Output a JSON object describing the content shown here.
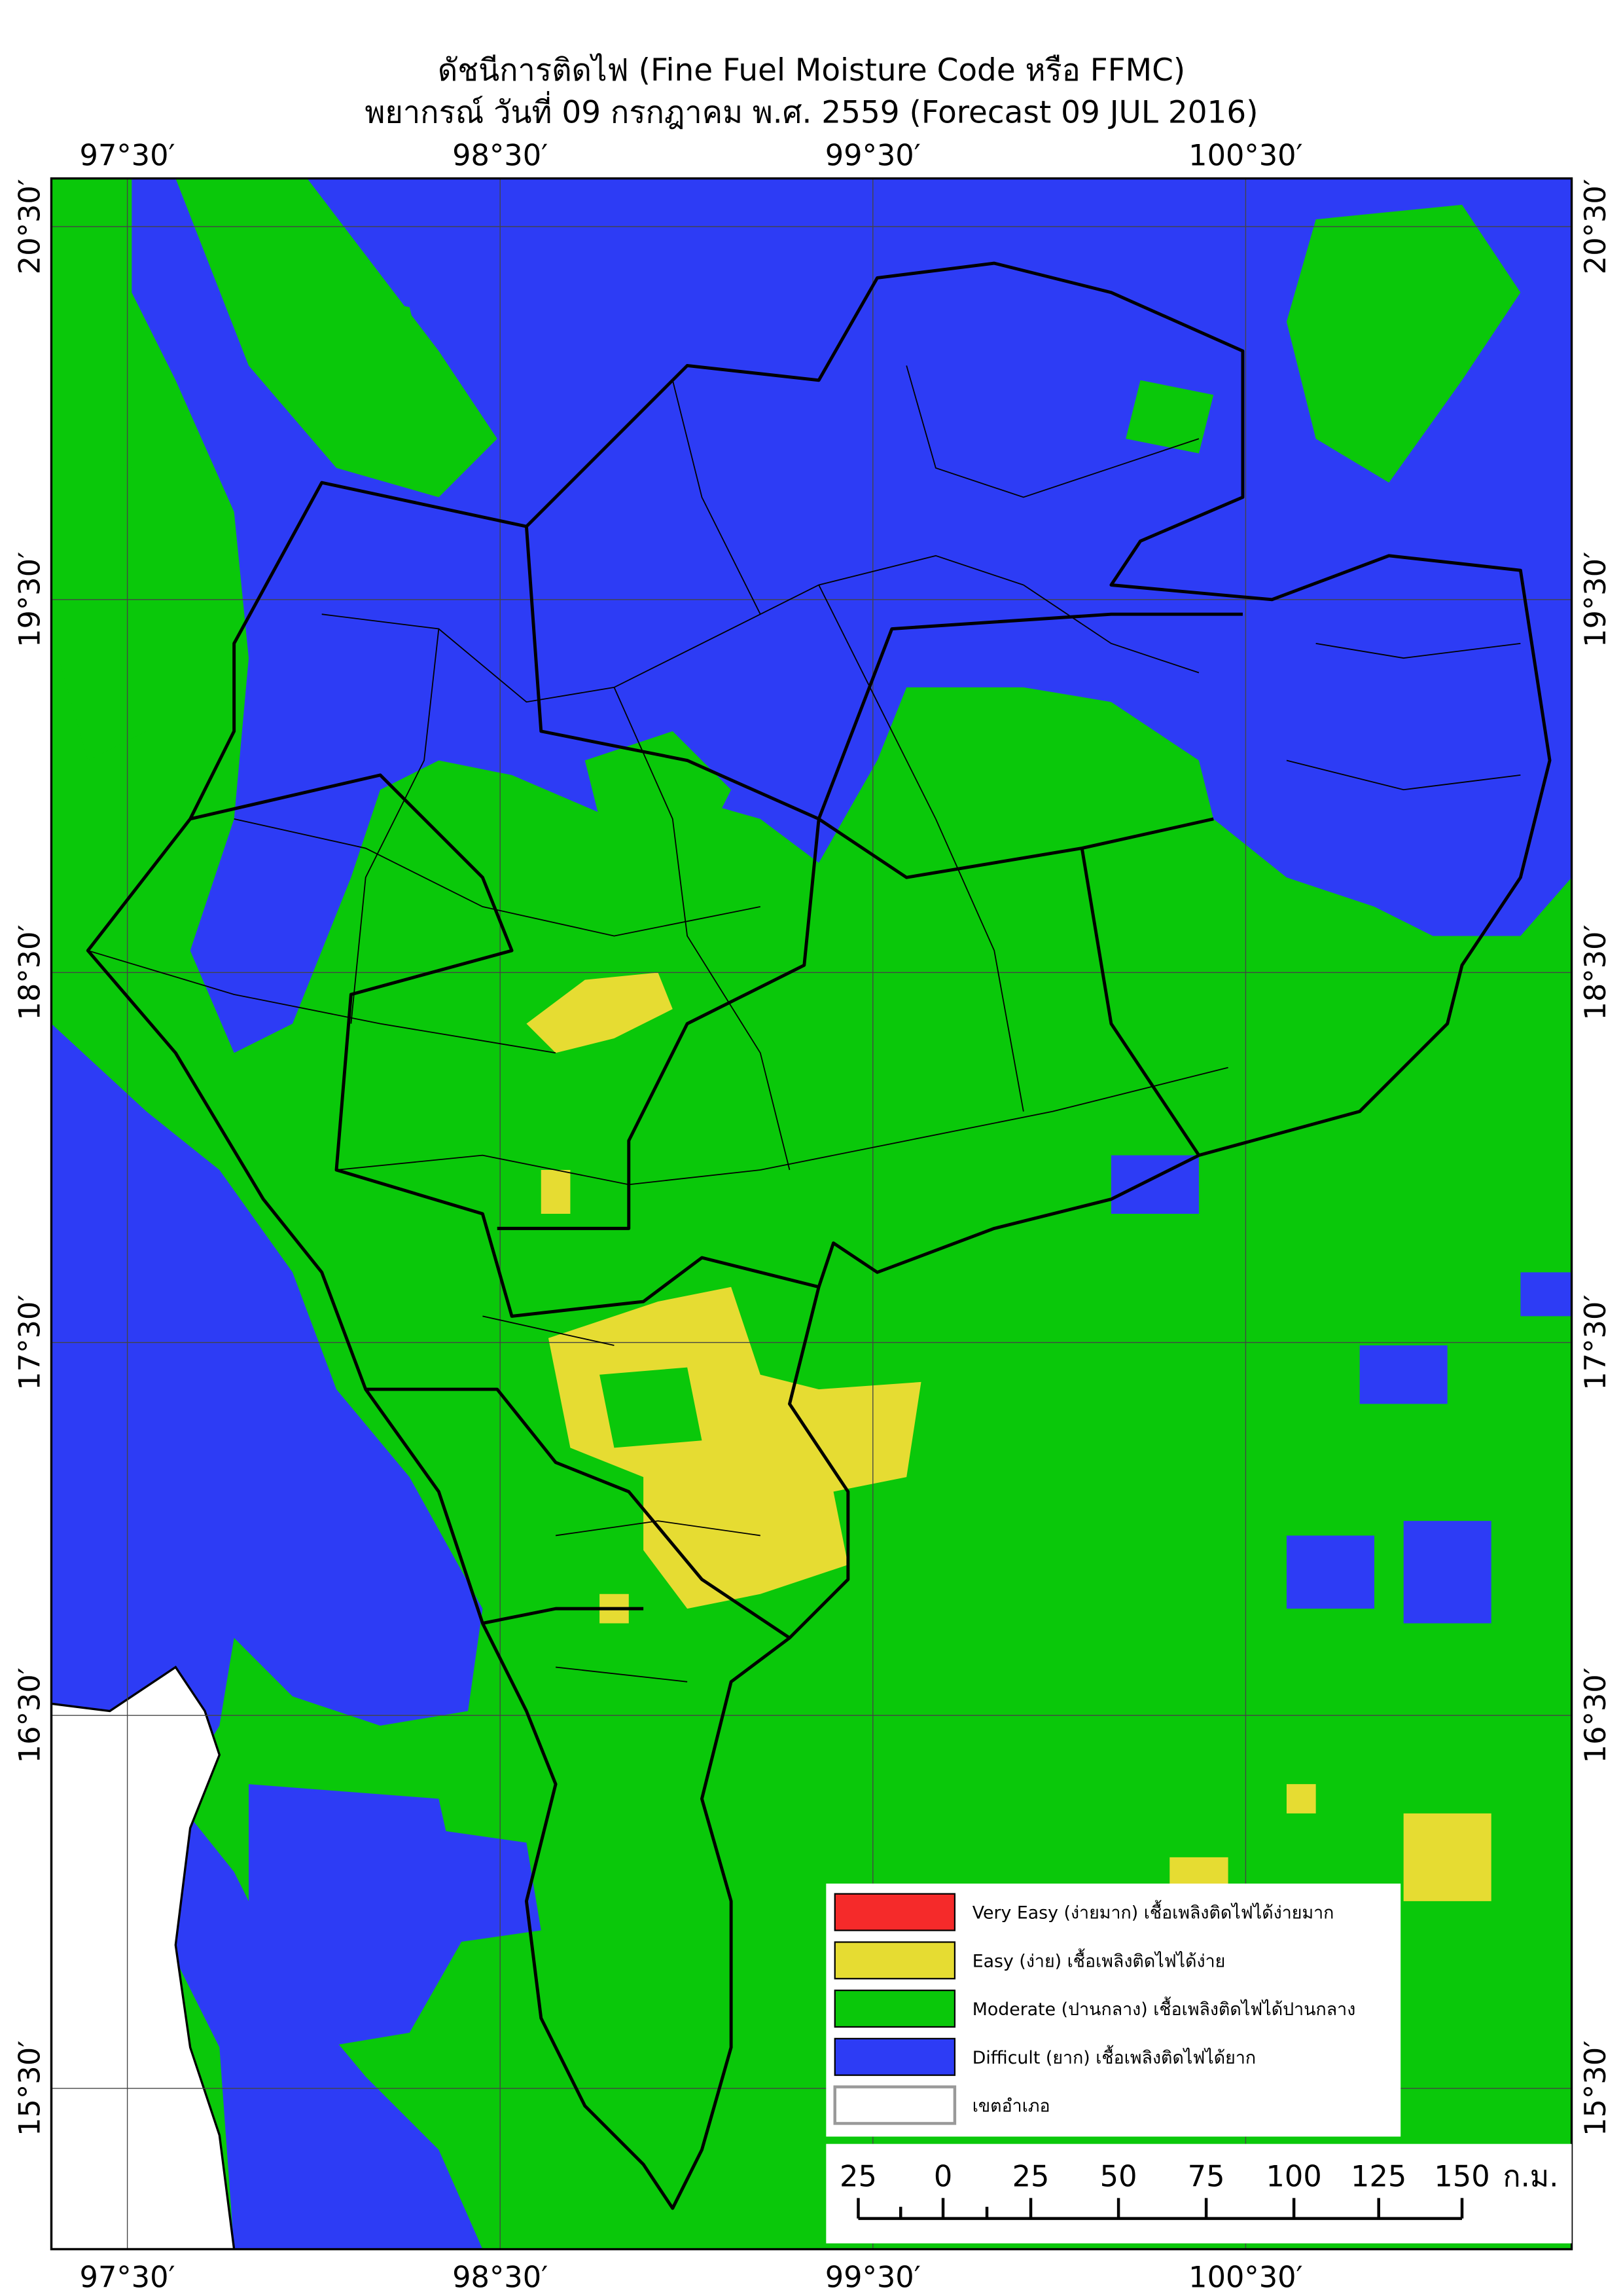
{
  "title": "ดัชนีการติดไฟ (Fine Fuel Moisture Code หรือ FFMC)",
  "subtitle": "พยากรณ์ วันที่ 09 กรกฎาคม พ.ศ. 2559 (Forecast 09 JUL 2016)",
  "longitude_labels": [
    "97°30′",
    "98°30′",
    "99°30′",
    "100°30′"
  ],
  "latitude_labels": [
    "20°30′",
    "19°30′",
    "18°30′",
    "17°30′",
    "16°30′",
    "15°30′"
  ],
  "legend": [
    {
      "label": "Very Easy (ง่ายมาก) เชื้อเพลิงติดไฟได้ง่ายมาก",
      "color": "#f52a2a"
    },
    {
      "label": "Easy (ง่าย) เชื้อเพลิงติดไฟได้ง่าย",
      "color": "#e6dc32"
    },
    {
      "label": "Moderate (ปานกลาง) เชื้อเพลิงติดไฟได้ปานกลาง",
      "color": "#0ac80a"
    },
    {
      "label": "Difficult (ยาก) เชื้อเพลิงติดไฟได้ยาก",
      "color": "#2d3cf5"
    },
    {
      "label": "เขตอำเภอ",
      "color": "#ffffff"
    }
  ],
  "scale_bar": {
    "labels": [
      "25",
      "0",
      "25",
      "50",
      "75",
      "100",
      "125",
      "150"
    ],
    "unit": "ก.ม."
  }
}
